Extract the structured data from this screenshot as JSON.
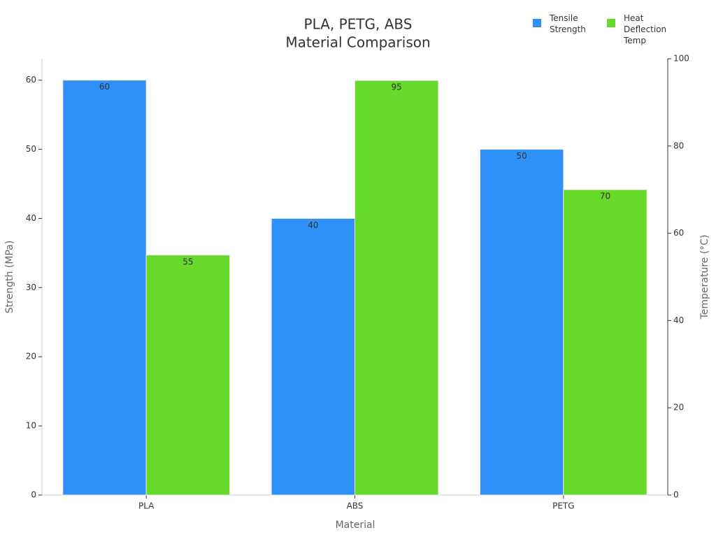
{
  "chart_data": {
    "type": "bar",
    "title": "PLA, PETG, ABS",
    "subtitle": "Material Comparison",
    "x_label": "Material",
    "y_label": "Strength (MPa)",
    "y2_label": "Temperature (°C)",
    "categories": [
      "PLA",
      "ABS",
      "PETG"
    ],
    "series": [
      {
        "name": "Tensile Strength",
        "color": "#2e90f8",
        "values": [
          60,
          40,
          50
        ]
      },
      {
        "name": "Heat Deflection Temp",
        "color": "#66d92a",
        "values": [
          55,
          95,
          70
        ],
        "axis": "y2"
      }
    ],
    "ylim": [
      0,
      63.1
    ],
    "yticks": [
      0,
      10,
      20,
      30,
      40,
      50,
      60
    ],
    "y2lim": [
      0,
      100
    ],
    "y2ticks": [
      0,
      20,
      40,
      60,
      80,
      100
    ],
    "legend": "top-right"
  }
}
